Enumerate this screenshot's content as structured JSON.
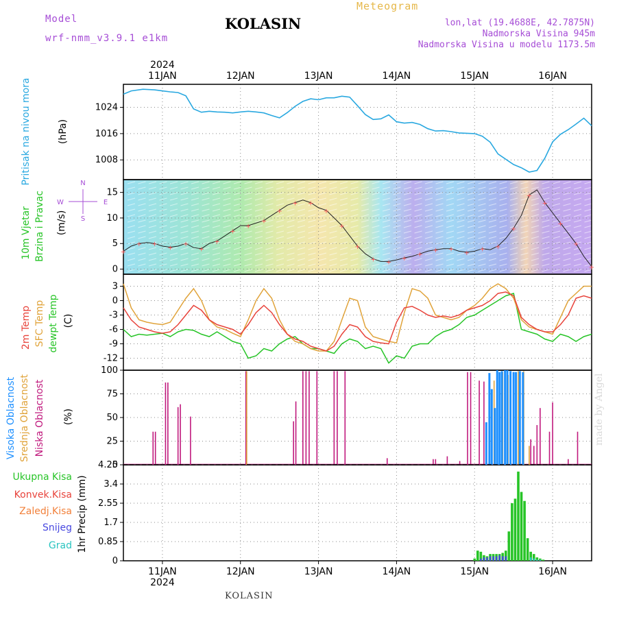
{
  "header": {
    "model_label": "Model",
    "model_name": "wrf-nmm_v3.9.1 e1km",
    "station": "KOLASIN",
    "product": "Meteogram",
    "lonlat": "lon,lat (19.4688E, 42.7875N)",
    "elevation": "Nadmorska Visina 945m",
    "model_elevation": "Nadmorska Visina u modelu 1173.5m"
  },
  "footer": {
    "station": "KOLASIN",
    "credit": "made by Angel"
  },
  "time_axis": {
    "year": "2024",
    "labels": [
      "11JAN",
      "12JAN",
      "13JAN",
      "14JAN",
      "15JAN",
      "16JAN"
    ],
    "day_positions": [
      1,
      2,
      3,
      4,
      5,
      6
    ],
    "range": [
      0.5,
      6.5
    ]
  },
  "colors": {
    "pressure": "#29a8e0",
    "temp2m": "#e8433b",
    "sfc": "#e0a33a",
    "dewpt": "#27c427",
    "high_cloud": "#1e90ff",
    "mid_cloud": "#e0a33a",
    "low_cloud": "#c0197d",
    "precip_total": "#27c427",
    "precip_conv": "#e8433b",
    "precip_frozen": "#f2803a",
    "snow": "#4848e0",
    "graupel": "#29c4c0"
  },
  "chart_data": [
    {
      "type": "line",
      "ylabel": "Pritisak na nivou mora",
      "unit": "(hPa)",
      "yticks": [
        1008,
        1016,
        1024
      ],
      "ylim": [
        1002,
        1031
      ],
      "series": [
        {
          "x": [
            0.5,
            0.6,
            0.75,
            0.9,
            1.0,
            1.1,
            1.2,
            1.3,
            1.4,
            1.5,
            1.6,
            1.7,
            1.8,
            1.9,
            2.0,
            2.1,
            2.2,
            2.3,
            2.4,
            2.5,
            2.6,
            2.7,
            2.8,
            2.9,
            3.0,
            3.1,
            3.2,
            3.3,
            3.4,
            3.5,
            3.6,
            3.7,
            3.8,
            3.9,
            4.0,
            4.1,
            4.2,
            4.3,
            4.4,
            4.5,
            4.6,
            4.7,
            4.8,
            4.9,
            5.0,
            5.1,
            5.2,
            5.3,
            5.4,
            5.5,
            5.6,
            5.7,
            5.8,
            5.9,
            6.0,
            6.1,
            6.2,
            6.3,
            6.4,
            6.5
          ],
          "y": [
            1028,
            1029,
            1029.5,
            1029.3,
            1029,
            1028.7,
            1028.5,
            1027.5,
            1023.5,
            1022.5,
            1022.8,
            1022.6,
            1022.5,
            1022.3,
            1022.6,
            1022.8,
            1022.6,
            1022.3,
            1021.5,
            1020.8,
            1022.4,
            1024.3,
            1025.8,
            1026.6,
            1026.3,
            1026.9,
            1026.9,
            1027.4,
            1027.1,
            1024.5,
            1021.8,
            1020.3,
            1020.5,
            1021.7,
            1019.6,
            1019.2,
            1019.4,
            1018.8,
            1017.5,
            1016.8,
            1016.9,
            1016.6,
            1016.2,
            1016.1,
            1016.0,
            1015.2,
            1013.4,
            1009.8,
            1008.2,
            1006.6,
            1005.6,
            1004.3,
            1004.8,
            1008.5,
            1013.5,
            1015.8,
            1017.2,
            1018.9,
            1020.7,
            1018.4
          ]
        }
      ]
    },
    {
      "type": "line",
      "ylabel": "10m Vjetar Brzina i Pravac",
      "unit": "(m/s)",
      "yticks": [
        0,
        5,
        10,
        15
      ],
      "ylim": [
        -1,
        17.5
      ],
      "compass": {
        "n": "N",
        "s": "S",
        "e": "E",
        "w": "W"
      },
      "series": [
        {
          "x": [
            0.5,
            0.6,
            0.7,
            0.8,
            0.9,
            1.0,
            1.1,
            1.2,
            1.3,
            1.4,
            1.5,
            1.6,
            1.7,
            1.8,
            1.9,
            2.0,
            2.1,
            2.2,
            2.3,
            2.4,
            2.5,
            2.6,
            2.7,
            2.8,
            2.9,
            3.0,
            3.1,
            3.2,
            3.3,
            3.4,
            3.5,
            3.6,
            3.7,
            3.8,
            3.9,
            4.0,
            4.1,
            4.2,
            4.3,
            4.4,
            4.5,
            4.6,
            4.7,
            4.8,
            4.9,
            5.0,
            5.1,
            5.2,
            5.3,
            5.4,
            5.5,
            5.6,
            5.7,
            5.8,
            5.9,
            6.0,
            6.1,
            6.2,
            6.3,
            6.4,
            6.5
          ],
          "y": [
            3.5,
            4.5,
            5.0,
            5.2,
            5.0,
            4.5,
            4.3,
            4.5,
            5.0,
            4.2,
            4.0,
            5.0,
            5.5,
            6.5,
            7.5,
            8.5,
            8.5,
            9.0,
            9.5,
            10.5,
            11.5,
            12.5,
            13.0,
            13.5,
            13.0,
            12.0,
            11.5,
            10.0,
            8.5,
            6.5,
            4.5,
            3.0,
            2.0,
            1.5,
            1.5,
            1.8,
            2.2,
            2.5,
            3.0,
            3.5,
            3.8,
            4.0,
            4.0,
            3.5,
            3.3,
            3.5,
            4.0,
            3.8,
            4.5,
            6.0,
            8.0,
            10.5,
            14.5,
            15.5,
            13.0,
            11.0,
            9.0,
            7.0,
            5.0,
            2.5,
            0.5
          ]
        }
      ]
    },
    {
      "type": "line",
      "ylabel": "2m Temp",
      "ylabel2": "SFC Temp",
      "ylabel3": "dewpt Temp",
      "unit": "(C)",
      "yticks": [
        -12,
        -9,
        -6,
        -3,
        0,
        3
      ],
      "ylim": [
        -14.5,
        5.5
      ],
      "series": [
        {
          "name": "2m Temp",
          "x": [
            0.5,
            0.6,
            0.7,
            0.8,
            0.9,
            1.0,
            1.1,
            1.2,
            1.3,
            1.4,
            1.5,
            1.6,
            1.7,
            1.8,
            1.9,
            2.0,
            2.1,
            2.2,
            2.3,
            2.4,
            2.5,
            2.6,
            2.7,
            2.8,
            2.9,
            3.0,
            3.1,
            3.2,
            3.3,
            3.4,
            3.5,
            3.6,
            3.7,
            3.8,
            3.9,
            4.0,
            4.1,
            4.2,
            4.3,
            4.4,
            4.5,
            4.6,
            4.7,
            4.8,
            4.9,
            5.0,
            5.1,
            5.2,
            5.3,
            5.4,
            5.5,
            5.6,
            5.7,
            5.8,
            5.9,
            6.0,
            6.1,
            6.2,
            6.3,
            6.4,
            6.5
          ],
          "y": [
            -1.5,
            -4.0,
            -5.5,
            -6.0,
            -6.5,
            -6.8,
            -6.5,
            -5.0,
            -3.0,
            -1.0,
            -2.0,
            -4.0,
            -5.0,
            -5.5,
            -6.0,
            -7.0,
            -5.0,
            -2.5,
            -1.0,
            -2.5,
            -5.0,
            -7.0,
            -8.0,
            -8.5,
            -9.5,
            -10.0,
            -10.5,
            -9.5,
            -7.0,
            -5.0,
            -5.5,
            -7.5,
            -8.5,
            -8.8,
            -9.0,
            -4.5,
            -1.5,
            -1.2,
            -2.0,
            -3.0,
            -3.5,
            -3.2,
            -3.5,
            -3.0,
            -2.0,
            -1.5,
            -1.0,
            0.0,
            1.5,
            1.8,
            1.0,
            -3.5,
            -5.0,
            -6.0,
            -6.5,
            -6.5,
            -5.0,
            -3.0,
            0.5,
            1.0,
            0.5
          ]
        },
        {
          "name": "SFC Temp",
          "x": [
            0.5,
            0.6,
            0.7,
            0.8,
            0.9,
            1.0,
            1.1,
            1.2,
            1.3,
            1.4,
            1.5,
            1.6,
            1.7,
            1.8,
            1.9,
            2.0,
            2.1,
            2.2,
            2.3,
            2.4,
            2.5,
            2.6,
            2.7,
            2.8,
            2.9,
            3.0,
            3.1,
            3.2,
            3.3,
            3.4,
            3.5,
            3.6,
            3.7,
            3.8,
            3.9,
            4.0,
            4.1,
            4.2,
            4.3,
            4.4,
            4.5,
            4.6,
            4.7,
            4.8,
            4.9,
            5.0,
            5.1,
            5.2,
            5.3,
            5.4,
            5.5,
            5.6,
            5.7,
            5.8,
            5.9,
            6.0,
            6.1,
            6.2,
            6.3,
            6.4,
            6.5
          ],
          "y": [
            3.5,
            -1.5,
            -4.0,
            -4.5,
            -4.8,
            -5.0,
            -4.5,
            -2.0,
            0.5,
            2.5,
            0.0,
            -4.0,
            -5.5,
            -6.0,
            -6.8,
            -7.5,
            -4.0,
            0.0,
            2.5,
            0.5,
            -4.0,
            -7.0,
            -8.5,
            -9.0,
            -10.0,
            -10.5,
            -10.5,
            -8.5,
            -4.0,
            0.5,
            0.0,
            -5.5,
            -7.5,
            -8.0,
            -8.5,
            -8.8,
            -2.5,
            2.5,
            2.0,
            0.5,
            -3.0,
            -3.5,
            -4.0,
            -3.5,
            -2.0,
            -1.0,
            0.5,
            2.5,
            3.5,
            2.5,
            0.5,
            -4.0,
            -5.5,
            -6.0,
            -6.5,
            -7.0,
            -3.5,
            0.0,
            1.5,
            3.0,
            3.0
          ]
        },
        {
          "name": "dewpt Temp",
          "x": [
            0.5,
            0.6,
            0.7,
            0.8,
            0.9,
            1.0,
            1.1,
            1.2,
            1.3,
            1.4,
            1.5,
            1.6,
            1.7,
            1.8,
            1.9,
            2.0,
            2.1,
            2.2,
            2.3,
            2.4,
            2.5,
            2.6,
            2.7,
            2.8,
            2.9,
            3.0,
            3.1,
            3.2,
            3.3,
            3.4,
            3.5,
            3.6,
            3.7,
            3.8,
            3.9,
            4.0,
            4.1,
            4.2,
            4.3,
            4.4,
            4.5,
            4.6,
            4.7,
            4.8,
            4.9,
            5.0,
            5.1,
            5.2,
            5.3,
            5.4,
            5.5,
            5.6,
            5.7,
            5.8,
            5.9,
            6.0,
            6.1,
            6.2,
            6.3,
            6.4,
            6.5
          ],
          "y": [
            -6.0,
            -7.5,
            -7.0,
            -7.2,
            -7.0,
            -6.8,
            -7.5,
            -6.5,
            -6.0,
            -6.2,
            -7.0,
            -7.5,
            -6.5,
            -7.5,
            -8.5,
            -9.0,
            -12.0,
            -11.5,
            -10.0,
            -10.5,
            -9.0,
            -8.0,
            -7.5,
            -9.0,
            -10.0,
            -10.0,
            -10.5,
            -11.0,
            -9.0,
            -8.0,
            -8.5,
            -10.0,
            -9.5,
            -10.0,
            -13.0,
            -11.5,
            -12.0,
            -9.5,
            -9.0,
            -9.0,
            -7.5,
            -6.5,
            -6.0,
            -5.0,
            -3.5,
            -3.0,
            -2.0,
            -1.0,
            0.0,
            1.0,
            1.5,
            -6.0,
            -6.5,
            -7.0,
            -8.0,
            -8.5,
            -7.0,
            -7.5,
            -8.5,
            -7.5,
            -7.0
          ]
        }
      ]
    },
    {
      "type": "bar",
      "ylabel": "Visoka Oblacnost",
      "ylabel2": "Srednja Oblacnost",
      "ylabel3": "Niska Oblacnost",
      "unit": "(%)",
      "yticks": [
        0,
        25,
        50,
        75,
        100
      ],
      "ylim": [
        0,
        100
      ],
      "series": [
        {
          "name": "Niska Oblacnost",
          "x": [
            0.88,
            0.91,
            1.04,
            1.07,
            1.2,
            1.23,
            1.36,
            2.07,
            2.68,
            2.71,
            2.8,
            2.84,
            2.88,
            2.98,
            3.2,
            3.24,
            3.34,
            3.88,
            4.47,
            4.5,
            4.65,
            4.81,
            4.91,
            4.95,
            5.06,
            5.12,
            5.58,
            5.72,
            5.76,
            5.8,
            5.84,
            5.96,
            6.0,
            6.2,
            6.32
          ],
          "values": [
            35,
            35,
            87,
            87,
            61,
            64,
            51,
            99,
            46,
            67,
            99,
            99,
            99,
            99,
            99,
            99,
            99,
            7,
            6,
            6,
            9,
            4,
            98,
            98,
            89,
            88,
            98,
            27,
            20,
            42,
            60,
            35,
            66,
            6,
            35
          ]
        },
        {
          "name": "Srednja Oblacnost",
          "x": [
            2.08,
            5.25,
            5.36,
            5.43,
            5.5,
            5.56,
            5.63,
            5.7
          ],
          "values": [
            99,
            89,
            98,
            95,
            98,
            99,
            99,
            20
          ]
        },
        {
          "name": "Visoka Oblacnost",
          "x": [
            5.15,
            5.19,
            5.22,
            5.26,
            5.29,
            5.32,
            5.35,
            5.39,
            5.42,
            5.46,
            5.5,
            5.53,
            5.58,
            5.62
          ],
          "values": [
            45,
            97,
            80,
            60,
            100,
            98,
            99,
            100,
            100,
            99,
            98,
            98,
            99,
            98
          ]
        }
      ]
    },
    {
      "type": "bar",
      "ylabel": "1hr Precip",
      "unit": "(mm)",
      "legend": [
        "Ukupna Kisa",
        "Konvek.Kisa",
        "Zaledj.Kisa",
        "Snijeg",
        "Grad"
      ],
      "yticks": [
        0,
        0.85,
        1.7,
        2.55,
        3.4,
        4.25
      ],
      "ylim": [
        0,
        4.25
      ],
      "series": [
        {
          "name": "Ukupna Kisa",
          "x": [
            5.0,
            5.04,
            5.08,
            5.12,
            5.16,
            5.2,
            5.24,
            5.28,
            5.32,
            5.36,
            5.4,
            5.44,
            5.48,
            5.52,
            5.56,
            5.6,
            5.64,
            5.68,
            5.72,
            5.76,
            5.8,
            5.84,
            5.88
          ],
          "values": [
            0.1,
            0.45,
            0.4,
            0.25,
            0.2,
            0.3,
            0.3,
            0.3,
            0.3,
            0.35,
            0.45,
            1.3,
            2.55,
            2.75,
            3.95,
            3.05,
            2.65,
            1.0,
            0.4,
            0.3,
            0.15,
            0.1,
            0.05
          ]
        },
        {
          "name": "Snijeg",
          "x": [
            5.08,
            5.12,
            5.16,
            5.2,
            5.24,
            5.28,
            5.32,
            5.36,
            5.4
          ],
          "values": [
            0.1,
            0.15,
            0.15,
            0.2,
            0.2,
            0.2,
            0.25,
            0.2,
            0.2
          ]
        },
        {
          "name": "Grad",
          "x": [
            5.72,
            5.76,
            5.8,
            5.84
          ],
          "values": [
            0.15,
            0.1,
            0.05,
            0.05
          ]
        }
      ]
    }
  ]
}
